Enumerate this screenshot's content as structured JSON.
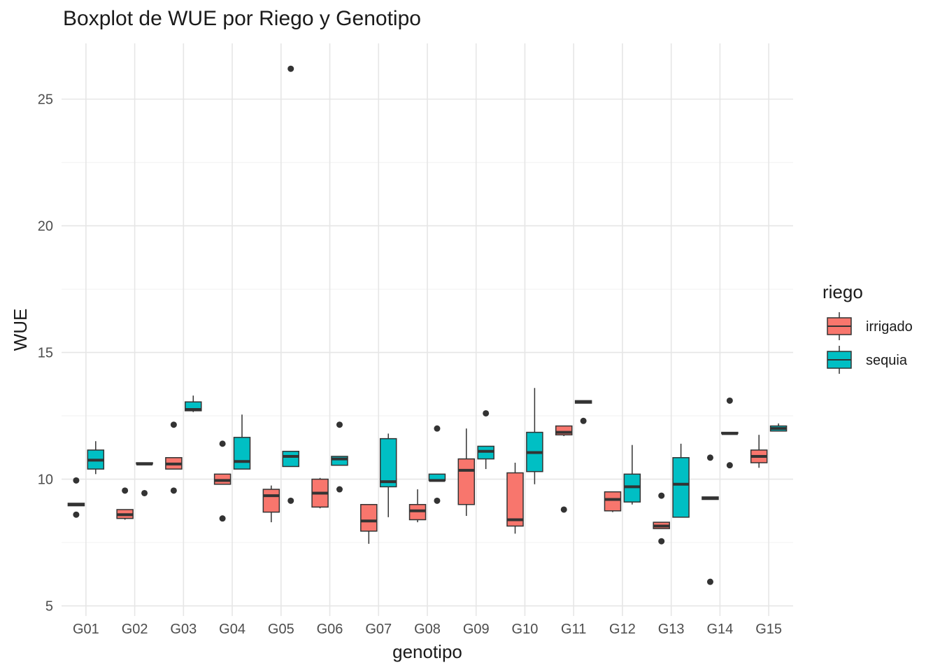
{
  "chart_data": {
    "type": "boxplot",
    "title": "Boxplot de WUE por Riego y Genotipo",
    "xlabel": "genotipo",
    "ylabel": "WUE",
    "ylim": [
      4.6,
      27.2
    ],
    "yticks": [
      5,
      10,
      15,
      20,
      25
    ],
    "grid": true,
    "legend": {
      "title": "riego",
      "position": "right"
    },
    "categories": [
      "G01",
      "G02",
      "G03",
      "G04",
      "G05",
      "G06",
      "G07",
      "G08",
      "G09",
      "G10",
      "G11",
      "G12",
      "G13",
      "G14",
      "G15"
    ],
    "series": [
      {
        "name": "irrigado",
        "color": "#F8766D",
        "boxes": [
          {
            "q1": 8.95,
            "median": 9.0,
            "q3": 9.05,
            "whisker_low": 8.95,
            "whisker_high": 9.05,
            "outliers": [
              8.6,
              9.95
            ]
          },
          {
            "q1": 8.45,
            "median": 8.6,
            "q3": 8.8,
            "whisker_low": 8.4,
            "whisker_high": 8.8,
            "outliers": [
              9.55
            ]
          },
          {
            "q1": 10.4,
            "median": 10.6,
            "q3": 10.85,
            "whisker_low": 10.4,
            "whisker_high": 10.85,
            "outliers": [
              9.55,
              12.15
            ]
          },
          {
            "q1": 9.8,
            "median": 9.95,
            "q3": 10.2,
            "whisker_low": 9.8,
            "whisker_high": 10.2,
            "outliers": [
              8.45,
              11.4
            ]
          },
          {
            "q1": 8.7,
            "median": 9.35,
            "q3": 9.6,
            "whisker_low": 8.3,
            "whisker_high": 9.75,
            "outliers": []
          },
          {
            "q1": 8.9,
            "median": 9.45,
            "q3": 10.0,
            "whisker_low": 8.85,
            "whisker_high": 10.05,
            "outliers": []
          },
          {
            "q1": 7.95,
            "median": 8.35,
            "q3": 9.0,
            "whisker_low": 7.45,
            "whisker_high": 9.0,
            "outliers": []
          },
          {
            "q1": 8.4,
            "median": 8.75,
            "q3": 9.0,
            "whisker_low": 8.3,
            "whisker_high": 9.6,
            "outliers": []
          },
          {
            "q1": 9.0,
            "median": 10.35,
            "q3": 10.8,
            "whisker_low": 8.55,
            "whisker_high": 12.0,
            "outliers": []
          },
          {
            "q1": 8.15,
            "median": 8.4,
            "q3": 10.25,
            "whisker_low": 7.85,
            "whisker_high": 10.65,
            "outliers": []
          },
          {
            "q1": 11.75,
            "median": 11.85,
            "q3": 12.1,
            "whisker_low": 11.7,
            "whisker_high": 12.1,
            "outliers": [
              8.8
            ]
          },
          {
            "q1": 8.75,
            "median": 9.2,
            "q3": 9.5,
            "whisker_low": 8.7,
            "whisker_high": 9.5,
            "outliers": []
          },
          {
            "q1": 8.05,
            "median": 8.15,
            "q3": 8.3,
            "whisker_low": 8.05,
            "whisker_high": 8.3,
            "outliers": [
              7.55,
              9.35
            ]
          },
          {
            "q1": 9.2,
            "median": 9.25,
            "q3": 9.3,
            "whisker_low": 9.2,
            "whisker_high": 9.3,
            "outliers": [
              5.95,
              10.85
            ]
          },
          {
            "q1": 10.65,
            "median": 10.9,
            "q3": 11.15,
            "whisker_low": 10.45,
            "whisker_high": 11.75,
            "outliers": []
          }
        ]
      },
      {
        "name": "sequia",
        "color": "#00BFC4",
        "boxes": [
          {
            "q1": 10.4,
            "median": 10.75,
            "q3": 11.15,
            "whisker_low": 10.2,
            "whisker_high": 11.5,
            "outliers": []
          },
          {
            "q1": 10.6,
            "median": 10.6,
            "q3": 10.65,
            "whisker_low": 10.6,
            "whisker_high": 10.65,
            "outliers": [
              9.45
            ]
          },
          {
            "q1": 12.7,
            "median": 12.75,
            "q3": 13.05,
            "whisker_low": 12.65,
            "whisker_high": 13.3,
            "outliers": []
          },
          {
            "q1": 10.4,
            "median": 10.7,
            "q3": 11.65,
            "whisker_low": 10.4,
            "whisker_high": 12.55,
            "outliers": []
          },
          {
            "q1": 10.5,
            "median": 10.9,
            "q3": 11.1,
            "whisker_low": 10.5,
            "whisker_high": 11.1,
            "outliers": [
              9.15,
              26.2
            ]
          },
          {
            "q1": 10.55,
            "median": 10.8,
            "q3": 10.9,
            "whisker_low": 10.55,
            "whisker_high": 10.9,
            "outliers": [
              9.6,
              12.15
            ]
          },
          {
            "q1": 9.7,
            "median": 9.9,
            "q3": 11.6,
            "whisker_low": 8.5,
            "whisker_high": 11.8,
            "outliers": []
          },
          {
            "q1": 9.95,
            "median": 9.95,
            "q3": 10.2,
            "whisker_low": 9.95,
            "whisker_high": 10.2,
            "outliers": [
              9.15,
              12.0
            ]
          },
          {
            "q1": 10.8,
            "median": 11.1,
            "q3": 11.3,
            "whisker_low": 10.4,
            "whisker_high": 11.3,
            "outliers": [
              12.6
            ]
          },
          {
            "q1": 10.3,
            "median": 11.05,
            "q3": 11.85,
            "whisker_low": 9.8,
            "whisker_high": 13.6,
            "outliers": []
          },
          {
            "q1": 13.0,
            "median": 13.05,
            "q3": 13.1,
            "whisker_low": 13.0,
            "whisker_high": 13.1,
            "outliers": [
              12.3
            ]
          },
          {
            "q1": 9.1,
            "median": 9.7,
            "q3": 10.2,
            "whisker_low": 9.0,
            "whisker_high": 11.35,
            "outliers": []
          },
          {
            "q1": 8.5,
            "median": 9.8,
            "q3": 10.85,
            "whisker_low": 8.5,
            "whisker_high": 11.4,
            "outliers": []
          },
          {
            "q1": 11.8,
            "median": 11.8,
            "q3": 11.85,
            "whisker_low": 11.8,
            "whisker_high": 11.85,
            "outliers": [
              10.55,
              13.1
            ]
          },
          {
            "q1": 11.9,
            "median": 12.0,
            "q3": 12.1,
            "whisker_low": 11.9,
            "whisker_high": 12.2,
            "outliers": []
          }
        ]
      }
    ]
  }
}
